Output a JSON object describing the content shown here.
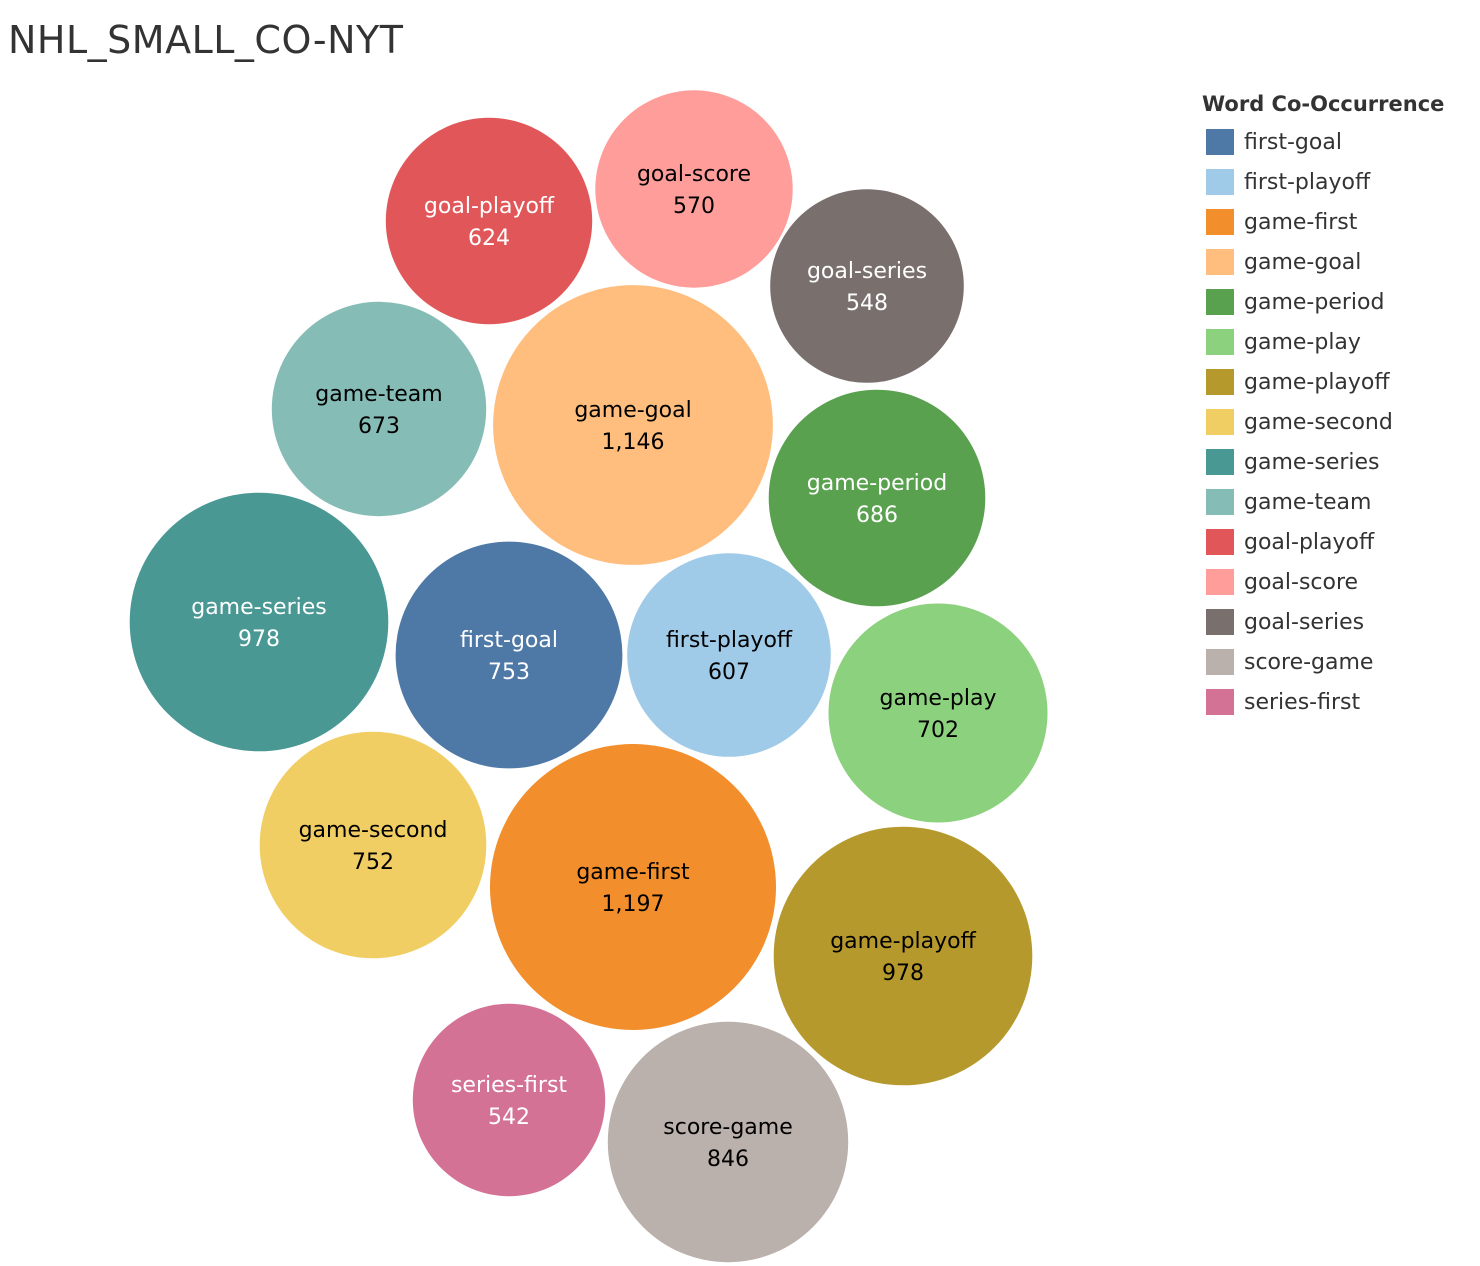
{
  "chart_data": {
    "type": "bubble",
    "title": "NHL_SMALL_CO-NYT",
    "legend_title": "Word Co-Occurrence",
    "legend_position": "right",
    "series": [
      {
        "name": "first-goal",
        "value": 753,
        "value_label": "753",
        "color": "#4e79a7",
        "text_color": "#ffffff"
      },
      {
        "name": "first-playoff",
        "value": 607,
        "value_label": "607",
        "color": "#a0cbe8",
        "text_color": "#000000"
      },
      {
        "name": "game-first",
        "value": 1197,
        "value_label": "1,197",
        "color": "#f28e2b",
        "text_color": "#000000"
      },
      {
        "name": "game-goal",
        "value": 1146,
        "value_label": "1,146",
        "color": "#ffbe7d",
        "text_color": "#000000"
      },
      {
        "name": "game-period",
        "value": 686,
        "value_label": "686",
        "color": "#59a14f",
        "text_color": "#ffffff"
      },
      {
        "name": "game-play",
        "value": 702,
        "value_label": "702",
        "color": "#8cd17d",
        "text_color": "#000000"
      },
      {
        "name": "game-playoff",
        "value": 978,
        "value_label": "978",
        "color": "#b6992d",
        "text_color": "#000000"
      },
      {
        "name": "game-second",
        "value": 752,
        "value_label": "752",
        "color": "#f1ce63",
        "text_color": "#000000"
      },
      {
        "name": "game-series",
        "value": 978,
        "value_label": "978",
        "color": "#499894",
        "text_color": "#ffffff"
      },
      {
        "name": "game-team",
        "value": 673,
        "value_label": "673",
        "color": "#86bcb6",
        "text_color": "#000000"
      },
      {
        "name": "goal-playoff",
        "value": 624,
        "value_label": "624",
        "color": "#e15759",
        "text_color": "#ffffff"
      },
      {
        "name": "goal-score",
        "value": 570,
        "value_label": "570",
        "color": "#ff9d9a",
        "text_color": "#000000"
      },
      {
        "name": "goal-series",
        "value": 548,
        "value_label": "548",
        "color": "#79706e",
        "text_color": "#ffffff"
      },
      {
        "name": "score-game",
        "value": 846,
        "value_label": "846",
        "color": "#bab0ac",
        "text_color": "#000000"
      },
      {
        "name": "series-first",
        "value": 542,
        "value_label": "542",
        "color": "#d37295",
        "text_color": "#ffffff"
      }
    ]
  }
}
